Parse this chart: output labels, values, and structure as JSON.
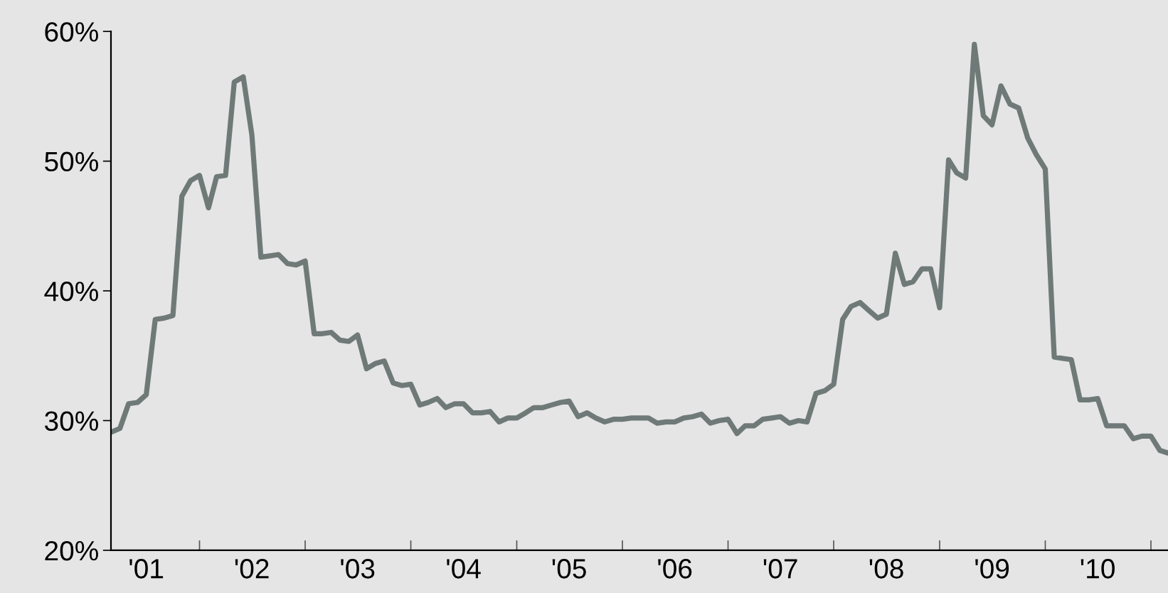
{
  "chart_data": {
    "type": "line",
    "x": [
      "2001-03",
      "2001-04",
      "2001-05",
      "2001-06",
      "2001-07",
      "2001-08",
      "2001-09",
      "2001-10",
      "2001-11",
      "2001-12",
      "2002-01",
      "2002-02",
      "2002-03",
      "2002-04",
      "2002-05",
      "2002-06",
      "2002-07",
      "2002-08",
      "2002-09",
      "2002-10",
      "2002-11",
      "2002-12",
      "2003-01",
      "2003-02",
      "2003-03",
      "2003-04",
      "2003-05",
      "2003-06",
      "2003-07",
      "2003-08",
      "2003-09",
      "2003-10",
      "2003-11",
      "2003-12",
      "2004-01",
      "2004-02",
      "2004-03",
      "2004-04",
      "2004-05",
      "2004-06",
      "2004-07",
      "2004-08",
      "2004-09",
      "2004-10",
      "2004-11",
      "2004-12",
      "2005-01",
      "2005-02",
      "2005-03",
      "2005-04",
      "2005-05",
      "2005-06",
      "2005-07",
      "2005-08",
      "2005-09",
      "2005-10",
      "2005-11",
      "2005-12",
      "2006-01",
      "2006-02",
      "2006-03",
      "2006-04",
      "2006-05",
      "2006-06",
      "2006-07",
      "2006-08",
      "2006-09",
      "2006-10",
      "2006-11",
      "2006-12",
      "2007-01",
      "2007-02",
      "2007-03",
      "2007-04",
      "2007-05",
      "2007-06",
      "2007-07",
      "2007-08",
      "2007-09",
      "2007-10",
      "2007-11",
      "2007-12",
      "2008-01",
      "2008-02",
      "2008-03",
      "2008-04",
      "2008-05",
      "2008-06",
      "2008-07",
      "2008-08",
      "2008-09",
      "2008-10",
      "2008-11",
      "2008-12",
      "2009-01",
      "2009-02",
      "2009-03",
      "2009-04",
      "2009-05",
      "2009-06",
      "2009-07",
      "2009-08",
      "2009-09",
      "2009-10",
      "2009-11",
      "2009-12",
      "2010-01",
      "2010-02",
      "2010-03",
      "2010-04",
      "2010-05",
      "2010-06",
      "2010-07",
      "2010-08",
      "2010-09",
      "2010-10",
      "2010-11",
      "2010-12",
      "2011-01",
      "2011-02",
      "2011-03"
    ],
    "series": [
      {
        "color": "#6f7a78",
        "values": [
          29.1,
          29.4,
          31.3,
          31.4,
          32.0,
          37.8,
          37.9,
          38.1,
          47.3,
          48.5,
          48.9,
          46.4,
          48.8,
          48.9,
          56.1,
          56.5,
          52.0,
          42.6,
          42.7,
          42.8,
          42.1,
          42.0,
          42.3,
          36.7,
          36.7,
          36.8,
          36.2,
          36.1,
          36.6,
          34.0,
          34.4,
          34.6,
          32.9,
          32.7,
          32.8,
          31.2,
          31.4,
          31.7,
          31.0,
          31.3,
          31.3,
          30.6,
          30.6,
          30.7,
          29.9,
          30.2,
          30.2,
          30.6,
          31.0,
          31.0,
          31.2,
          31.4,
          31.5,
          30.3,
          30.6,
          30.2,
          29.9,
          30.1,
          30.1,
          30.2,
          30.2,
          30.2,
          29.8,
          29.9,
          29.9,
          30.2,
          30.3,
          30.5,
          29.8,
          30.0,
          30.1,
          29.0,
          29.6,
          29.6,
          30.1,
          30.2,
          30.3,
          29.8,
          30.0,
          29.9,
          32.1,
          32.3,
          32.8,
          37.8,
          38.8,
          39.1,
          38.5,
          37.9,
          38.2,
          42.9,
          40.5,
          40.7,
          41.7,
          41.7,
          38.7,
          50.1,
          49.1,
          48.7,
          59.0,
          53.5,
          52.8,
          55.8,
          54.4,
          54.1,
          51.8,
          50.5,
          49.4,
          34.9,
          34.8,
          34.7,
          31.6,
          31.6,
          31.7,
          29.6,
          29.6,
          29.6,
          28.6,
          28.8,
          28.8,
          27.7,
          27.5
        ]
      }
    ],
    "xlim": [
      "2001-03",
      "2011-03"
    ],
    "xticks": [
      {
        "value": "2002-01",
        "label": null
      },
      {
        "value": "2003-01",
        "label": null
      },
      {
        "value": "2004-01",
        "label": null
      },
      {
        "value": "2005-01",
        "label": null
      },
      {
        "value": "2006-01",
        "label": null
      },
      {
        "value": "2007-01",
        "label": null
      },
      {
        "value": "2008-01",
        "label": null
      },
      {
        "value": "2009-01",
        "label": null
      },
      {
        "value": "2010-01",
        "label": null
      },
      {
        "value": "2011-01",
        "label": null
      },
      {
        "value": "2001-07",
        "label": "'01"
      },
      {
        "value": "2002-07",
        "label": "'02"
      },
      {
        "value": "2003-07",
        "label": "'03"
      },
      {
        "value": "2004-07",
        "label": "'04"
      },
      {
        "value": "2005-07",
        "label": "'05"
      },
      {
        "value": "2006-07",
        "label": "'06"
      },
      {
        "value": "2007-07",
        "label": "'07"
      },
      {
        "value": "2008-07",
        "label": "'08"
      },
      {
        "value": "2009-07",
        "label": "'09"
      },
      {
        "value": "2010-07",
        "label": "'10"
      }
    ],
    "ylim": [
      20,
      60
    ],
    "yticks": [
      {
        "value": 20,
        "label": "20%"
      },
      {
        "value": 30,
        "label": "30%"
      },
      {
        "value": 40,
        "label": "40%"
      },
      {
        "value": 50,
        "label": "50%"
      },
      {
        "value": 60,
        "label": "60%"
      }
    ],
    "grid": false,
    "marker": "none",
    "line_style": "solid"
  }
}
